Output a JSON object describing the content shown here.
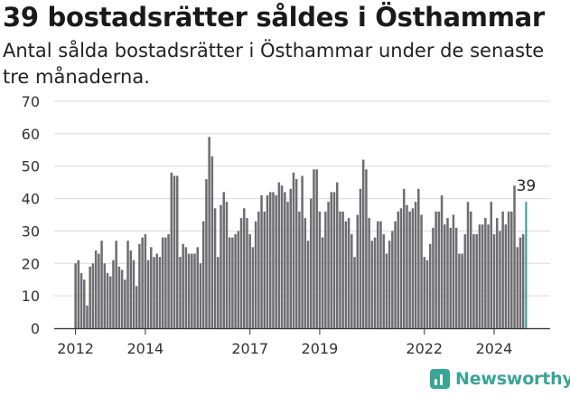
{
  "title": "39 bostadsrätter såldes i Östhammar",
  "subtitle": "Antal sålda bostadsrätter i Östhammar under de senaste tre månaderna.",
  "brand": {
    "name": "Newsworthy",
    "icon": "newsworthy-logo-icon",
    "color": "#3aa595"
  },
  "colors": {
    "bar": "#6e6d72",
    "highlight": "#2a9d8f",
    "grid": "#d9d9d9"
  },
  "chart_data": {
    "type": "bar",
    "ylim": [
      0,
      70
    ],
    "yticks": [
      0,
      10,
      20,
      30,
      40,
      50,
      60,
      70
    ],
    "xticks": [
      {
        "label": "2012",
        "index": 0
      },
      {
        "label": "2014",
        "index": 24
      },
      {
        "label": "2017",
        "index": 60
      },
      {
        "label": "2019",
        "index": 84
      },
      {
        "label": "2022",
        "index": 120
      },
      {
        "label": "2024",
        "index": 144
      }
    ],
    "highlight_label": "39",
    "values": [
      20,
      21,
      17,
      15,
      7,
      19,
      20,
      24,
      23,
      27,
      20,
      17,
      16,
      21,
      27,
      19,
      18,
      15,
      27,
      24,
      21,
      13,
      26,
      28,
      29,
      21,
      25,
      22,
      23,
      22,
      28,
      28,
      29,
      48,
      47,
      47,
      22,
      26,
      25,
      23,
      23,
      23,
      25,
      20,
      33,
      46,
      59,
      53,
      37,
      22,
      38,
      42,
      39,
      28,
      28,
      29,
      30,
      34,
      37,
      34,
      29,
      25,
      33,
      36,
      41,
      36,
      41,
      42,
      42,
      41,
      45,
      44,
      42,
      39,
      43,
      48,
      46,
      36,
      47,
      34,
      27,
      40,
      49,
      49,
      36,
      28,
      36,
      39,
      42,
      42,
      45,
      36,
      36,
      33,
      34,
      29,
      22,
      35,
      43,
      52,
      49,
      34,
      27,
      28,
      33,
      33,
      29,
      23,
      27,
      30,
      33,
      36,
      37,
      43,
      38,
      36,
      37,
      39,
      43,
      35,
      22,
      21,
      26,
      31,
      36,
      36,
      41,
      32,
      34,
      31,
      35,
      31,
      23,
      23,
      29,
      39,
      36,
      29,
      29,
      32,
      32,
      34,
      32,
      39,
      29,
      34,
      30,
      36,
      32,
      36,
      36,
      44,
      25,
      28,
      29,
      39
    ]
  }
}
